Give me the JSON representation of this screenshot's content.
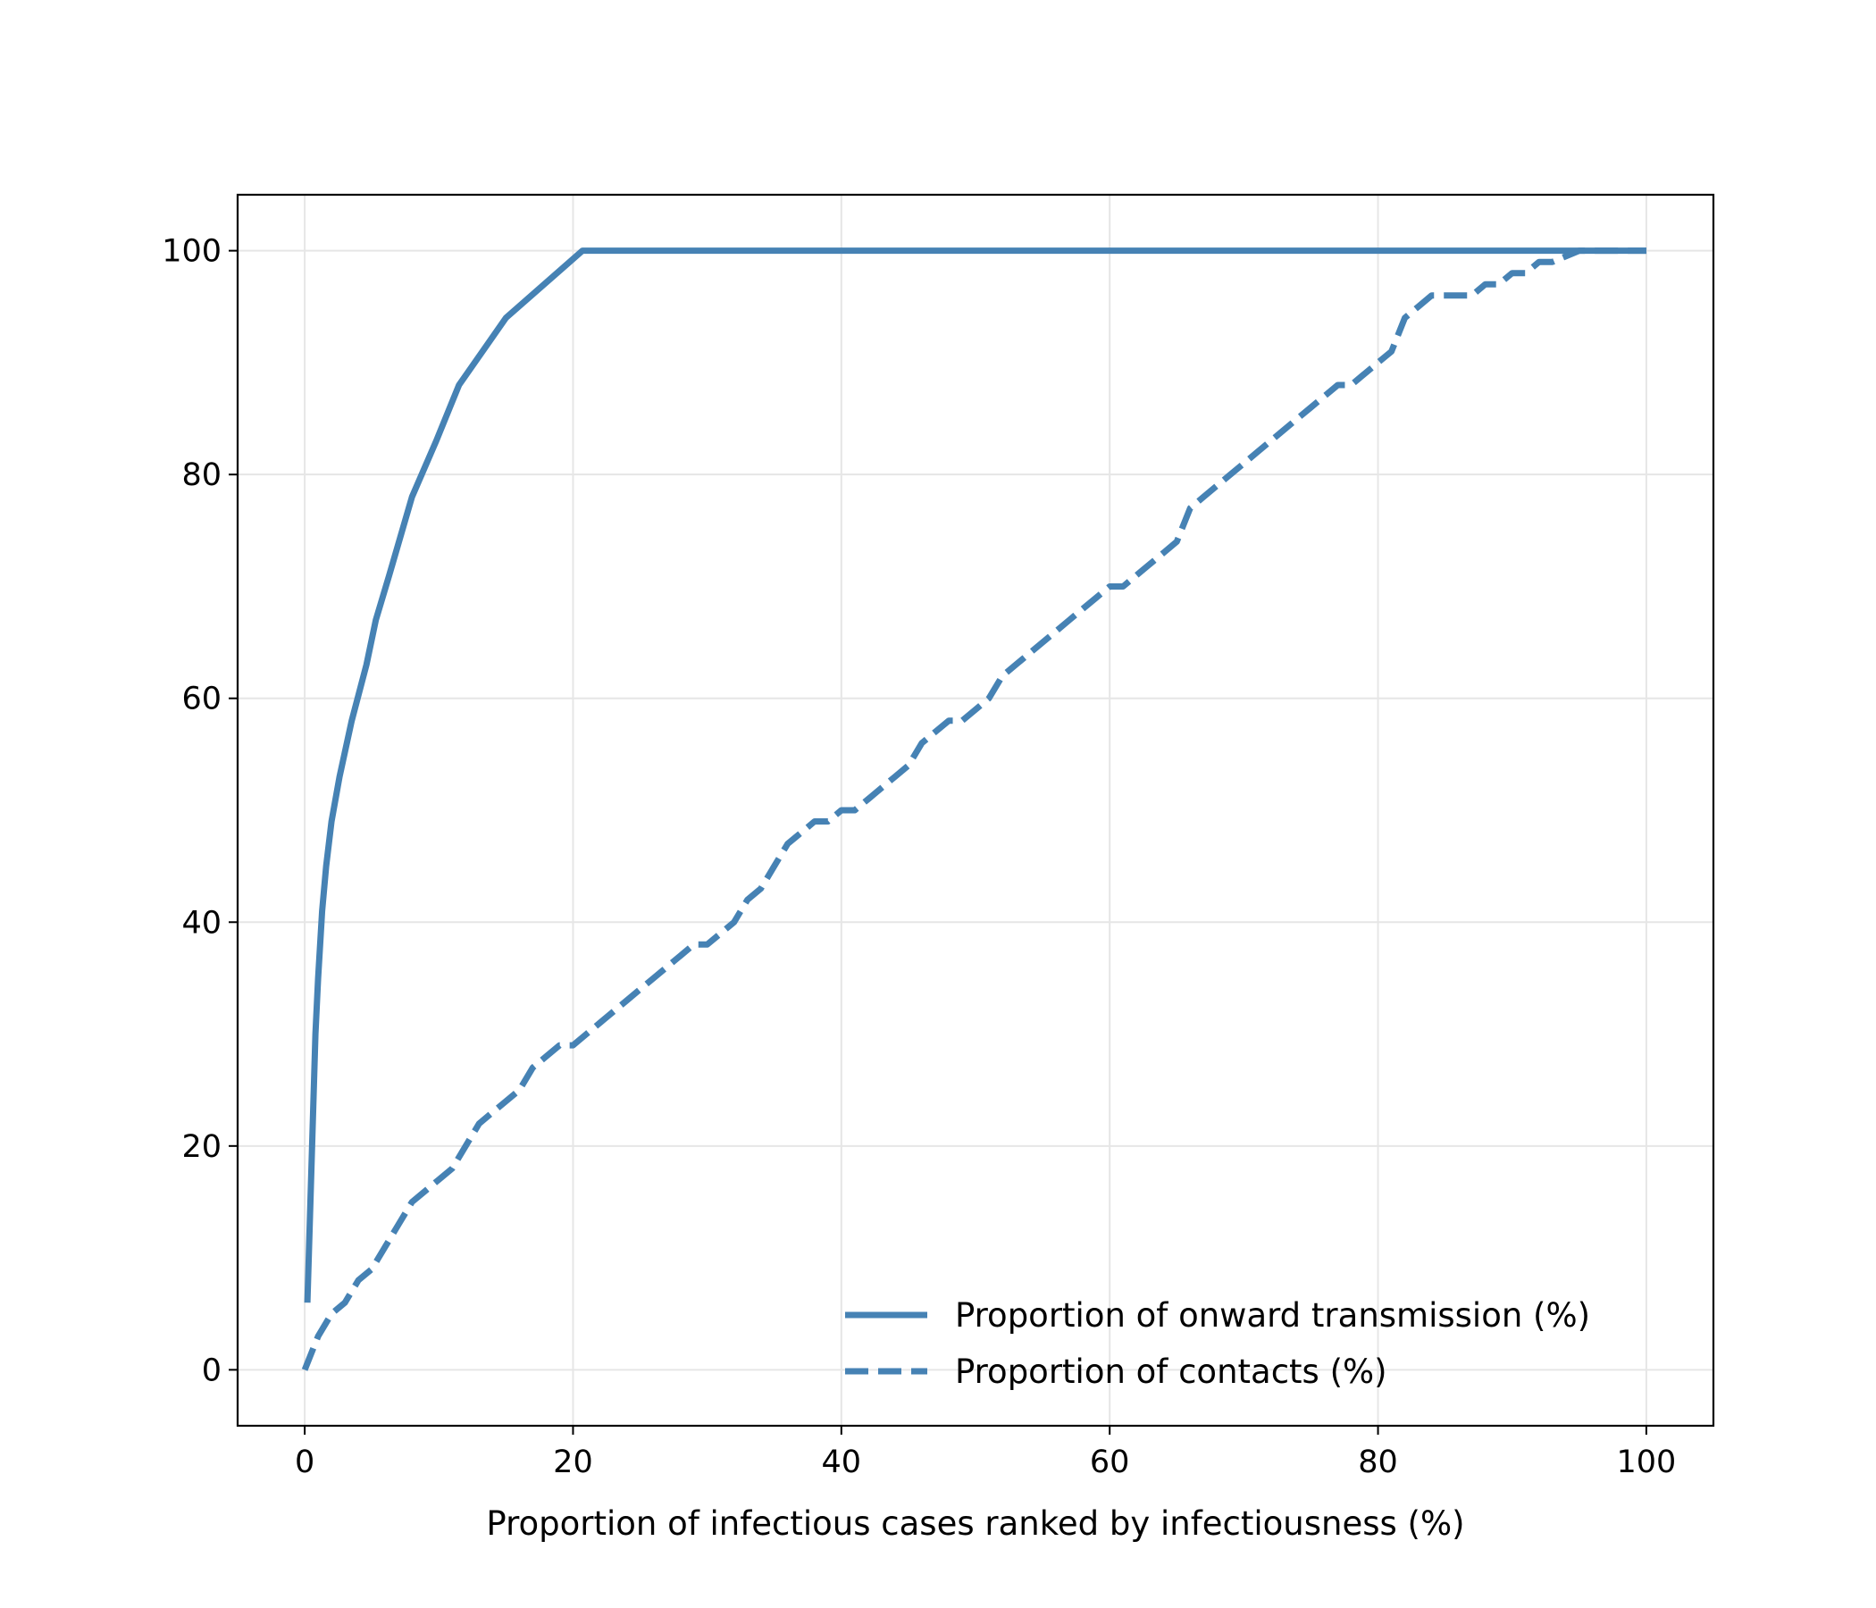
{
  "chart_data": {
    "type": "line",
    "title": "",
    "xlabel": "Proportion of infectious cases ranked by infectiousness (%)",
    "ylabel": "",
    "xlim": [
      -5,
      105
    ],
    "ylim": [
      -5,
      105
    ],
    "xticks": [
      0,
      20,
      40,
      60,
      80,
      100
    ],
    "yticks": [
      0,
      20,
      40,
      60,
      80,
      100
    ],
    "grid": true,
    "legend_position": "lower-right",
    "series": [
      {
        "name": "Proportion of onward transmission (%)",
        "style": "solid",
        "color": "#4682b4",
        "x": [
          0.2,
          0.4,
          0.6,
          0.8,
          1.0,
          1.3,
          1.6,
          2.0,
          2.6,
          3.5,
          4.6,
          5.3,
          6.3,
          8.0,
          9.8,
          11.5,
          15.0,
          20.7,
          100.0
        ],
        "y": [
          6,
          14,
          22,
          30,
          35,
          41,
          45,
          49,
          53,
          58,
          63,
          67,
          71,
          78,
          83,
          88,
          94,
          100,
          100
        ]
      },
      {
        "name": "Proportion of contacts (%)",
        "style": "dashed",
        "color": "#4682b4",
        "x": [
          0,
          1,
          2,
          3,
          4,
          5,
          6,
          7,
          8,
          9,
          10,
          11,
          12,
          13,
          14,
          15,
          16,
          17,
          18,
          19,
          20,
          21,
          22,
          23,
          24,
          25,
          26,
          27,
          28,
          29,
          30,
          31,
          32,
          33,
          34,
          35,
          36,
          37,
          38,
          39,
          40,
          41,
          42,
          43,
          44,
          45,
          46,
          47,
          48,
          49,
          50,
          51,
          52,
          53,
          54,
          55,
          56,
          57,
          58,
          59,
          60,
          61,
          62,
          63,
          64,
          65,
          66,
          67,
          68,
          69,
          70,
          71,
          72,
          73,
          74,
          75,
          76,
          77,
          78,
          79,
          80,
          81,
          82,
          83,
          84,
          85,
          86,
          87,
          88,
          89,
          90,
          91,
          92,
          93,
          94,
          95,
          96,
          97,
          98,
          99,
          100
        ],
        "y": [
          0,
          3,
          5,
          6,
          8,
          9,
          11,
          13,
          15,
          16,
          17,
          18,
          20,
          22,
          23,
          24,
          25,
          27,
          28,
          29,
          29,
          30,
          31,
          32,
          33,
          34,
          35,
          36,
          37,
          38,
          38,
          39,
          40,
          42,
          43,
          45,
          47,
          48,
          49,
          49,
          50,
          50,
          51,
          52,
          53,
          54,
          56,
          57,
          58,
          58,
          59,
          60,
          62,
          63,
          64,
          65,
          66,
          67,
          68,
          69,
          70,
          70,
          71,
          72,
          73,
          74,
          77,
          78,
          79,
          80,
          81,
          82,
          83,
          84,
          85,
          86,
          87,
          88,
          88,
          89,
          90,
          91,
          94,
          95,
          96,
          96,
          96,
          96,
          97,
          97,
          98,
          98,
          99,
          99,
          99.5,
          100,
          100,
          100,
          100,
          100,
          100
        ]
      }
    ]
  }
}
